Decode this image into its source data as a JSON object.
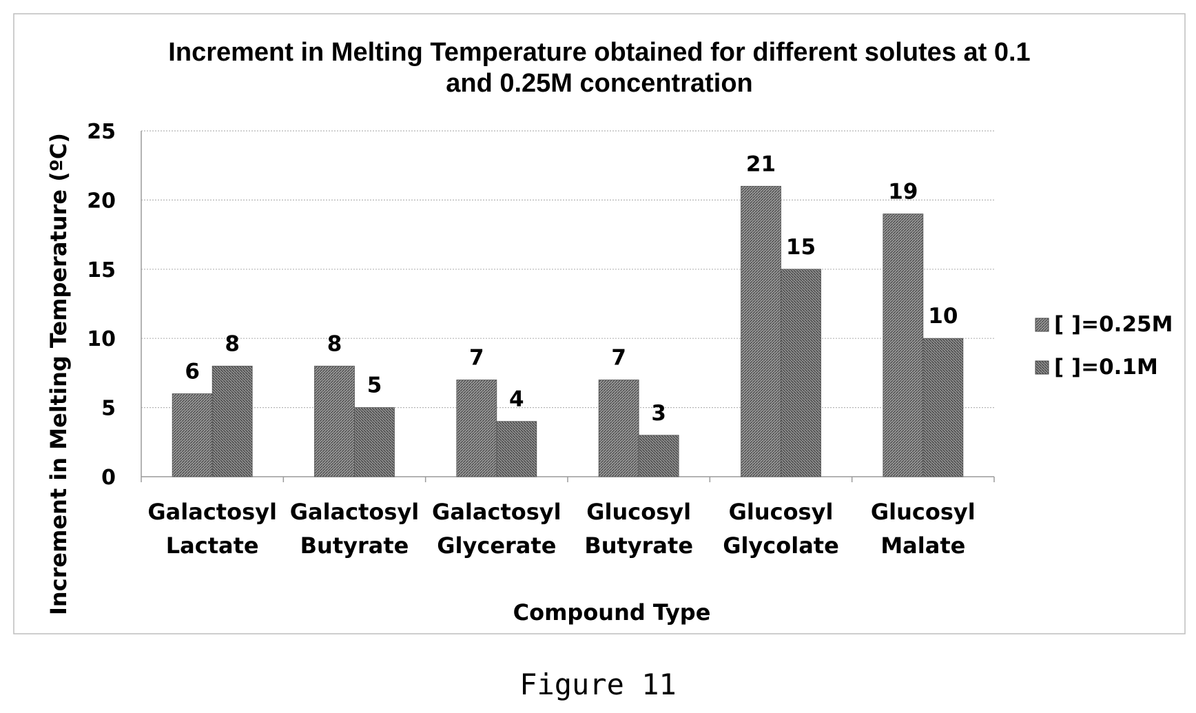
{
  "chart_data": {
    "type": "bar",
    "title_lines": [
      "Increment in Melting Temperature obtained for different solutes at 0.1",
      "and 0.25M concentration"
    ],
    "xlabel": "Compound Type",
    "ylabel": "Increment in Melting Temperature (ºC)",
    "ylim": [
      0,
      25
    ],
    "yticks": [
      0,
      5,
      10,
      15,
      20,
      25
    ],
    "grid": true,
    "legend_position": "right",
    "categories": [
      [
        "Galactosyl",
        "Lactate"
      ],
      [
        "Galactosyl",
        "Butyrate"
      ],
      [
        "Galactosyl",
        "Glycerate"
      ],
      [
        "Glucosyl",
        "Butyrate"
      ],
      [
        "Glucosyl",
        "Glycolate"
      ],
      [
        "Glucosyl",
        "Malate"
      ]
    ],
    "series": [
      {
        "name": "[ ]=0.25M",
        "values": [
          6,
          8,
          7,
          7,
          21,
          19
        ],
        "color": "#7a7a7a"
      },
      {
        "name": "[ ]=0.1M",
        "values": [
          8,
          5,
          4,
          3,
          15,
          10
        ],
        "color": "#6e6e6e"
      }
    ],
    "data_label_colors": [
      "#000000",
      "#000000",
      "#000000",
      "#000000",
      "#8a8a8a",
      "#8a8a8a"
    ]
  },
  "caption": "Figure 11"
}
